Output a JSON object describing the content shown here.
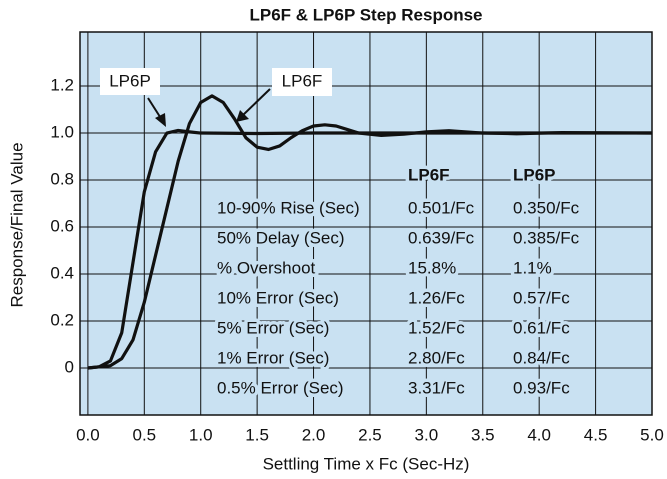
{
  "chart_data": {
    "type": "line",
    "title": "LP6F & LP6P Step Response",
    "xlabel": "Settling Time x Fc (Sec-Hz)",
    "ylabel": "Response/Final Value",
    "xlim": [
      -0.07,
      5.0
    ],
    "ylim": [
      -0.2,
      1.43
    ],
    "xticks": [
      {
        "value": 0,
        "label": "0.0"
      },
      0.5,
      {
        "value": 1,
        "label": "1.0"
      },
      1.5,
      {
        "value": 2,
        "label": "2.0"
      },
      2.5,
      {
        "value": 3,
        "label": "3.0"
      },
      3.5,
      {
        "value": 4,
        "label": "4.0"
      },
      4.5,
      {
        "value": 5,
        "label": "5.0"
      }
    ],
    "yticks": [
      0,
      0.2,
      0.4,
      0.6,
      0.8,
      {
        "value": 1,
        "label": "1.0"
      },
      1.2
    ],
    "grid": true,
    "series": [
      {
        "name": "LP6F",
        "color": "#111111",
        "x": [
          0,
          0.2,
          0.3,
          0.4,
          0.5,
          0.6,
          0.7,
          0.8,
          0.9,
          1.0,
          1.1,
          1.2,
          1.3,
          1.4,
          1.5,
          1.6,
          1.7,
          1.8,
          1.9,
          2.0,
          2.1,
          2.2,
          2.4,
          2.6,
          2.8,
          3.0,
          3.2,
          3.5,
          3.8,
          4.2,
          5.0
        ],
        "values": [
          0,
          0.01,
          0.04,
          0.12,
          0.28,
          0.48,
          0.68,
          0.88,
          1.04,
          1.13,
          1.158,
          1.13,
          1.06,
          0.98,
          0.94,
          0.93,
          0.945,
          0.98,
          1.01,
          1.03,
          1.035,
          1.03,
          1.0,
          0.99,
          0.995,
          1.005,
          1.01,
          1.0,
          0.997,
          1.002,
          1.0
        ]
      },
      {
        "name": "LP6P",
        "color": "#111111",
        "x": [
          0,
          0.1,
          0.2,
          0.3,
          0.4,
          0.5,
          0.6,
          0.7,
          0.8,
          0.9,
          1.0,
          1.5,
          2.0,
          5.0
        ],
        "values": [
          0,
          0.005,
          0.03,
          0.15,
          0.45,
          0.75,
          0.92,
          1.0,
          1.011,
          1.005,
          1.0,
          0.998,
          1.0,
          1.0
        ]
      }
    ],
    "table": {
      "header": [
        "LP6F",
        "LP6P"
      ],
      "rows": [
        [
          "10-90% Rise (Sec)",
          "0.501/Fc",
          "0.350/Fc"
        ],
        [
          "50% Delay (Sec)",
          "0.639/Fc",
          "0.385/Fc"
        ],
        [
          "% Overshoot",
          "15.8%",
          "1.1%"
        ],
        [
          "10% Error (Sec)",
          "1.26/Fc",
          "0.57/Fc"
        ],
        [
          "5% Error (Sec)",
          "1.52/Fc",
          "0.61/Fc"
        ],
        [
          "1% Error (Sec)",
          "2.80/Fc",
          "0.84/Fc"
        ],
        [
          "0.5% Error (Sec)",
          "3.31/Fc",
          "0.93/Fc"
        ]
      ]
    }
  }
}
